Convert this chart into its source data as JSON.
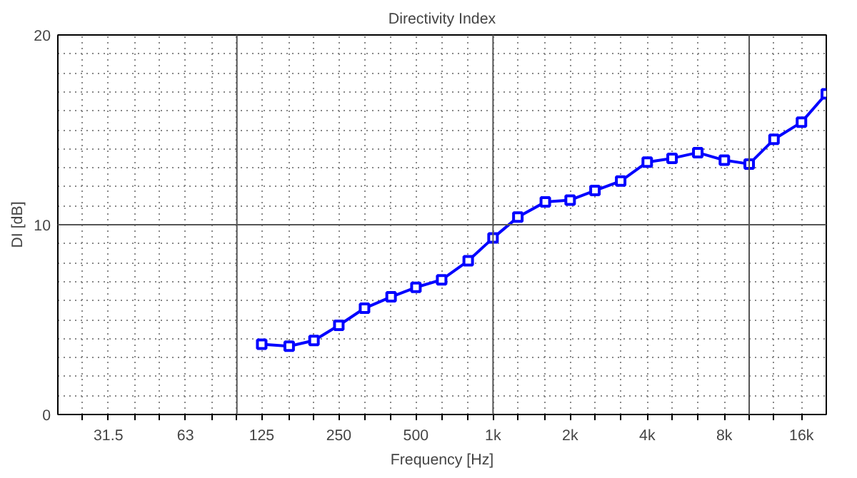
{
  "chart_data": {
    "type": "line",
    "title": "Directivity Index",
    "xlabel": "Frequency [Hz]",
    "ylabel": "DI [dB]",
    "log": "x",
    "x": [
      125,
      160,
      200,
      250,
      315,
      400,
      500,
      630,
      800,
      1000,
      1250,
      1600,
      2000,
      2500,
      3150,
      4000,
      5000,
      6300,
      8000,
      10000,
      12500,
      16000,
      20000
    ],
    "series": [
      {
        "color": "#0000ff",
        "values": [
          3.7,
          3.6,
          3.9,
          4.7,
          5.6,
          6.2,
          6.7,
          7.1,
          8.1,
          9.3,
          10.4,
          11.2,
          11.3,
          11.8,
          12.3,
          13.3,
          13.5,
          13.8,
          13.4,
          13.2,
          14.5,
          15.4,
          16.9
        ]
      }
    ],
    "xlim": [
      20,
      20000
    ],
    "ylim": [
      0,
      20
    ],
    "xticks": [
      {
        "value": 25,
        "label": null
      },
      {
        "value": 31.5,
        "label": "31.5"
      },
      {
        "value": 40,
        "label": null
      },
      {
        "value": 50,
        "label": null
      },
      {
        "value": 63,
        "label": "63"
      },
      {
        "value": 80,
        "label": null
      },
      {
        "value": 100,
        "label": null
      },
      {
        "value": 125,
        "label": "125"
      },
      {
        "value": 160,
        "label": null
      },
      {
        "value": 200,
        "label": null
      },
      {
        "value": 250,
        "label": "250"
      },
      {
        "value": 315,
        "label": null
      },
      {
        "value": 400,
        "label": null
      },
      {
        "value": 500,
        "label": "500"
      },
      {
        "value": 630,
        "label": null
      },
      {
        "value": 800,
        "label": null
      },
      {
        "value": 1000,
        "label": "1k"
      },
      {
        "value": 1250,
        "label": null
      },
      {
        "value": 1600,
        "label": null
      },
      {
        "value": 2000,
        "label": "2k"
      },
      {
        "value": 2500,
        "label": null
      },
      {
        "value": 3150,
        "label": null
      },
      {
        "value": 4000,
        "label": "4k"
      },
      {
        "value": 5000,
        "label": null
      },
      {
        "value": 6300,
        "label": null
      },
      {
        "value": 8000,
        "label": "8k"
      },
      {
        "value": 10000,
        "label": null
      },
      {
        "value": 12500,
        "label": null
      },
      {
        "value": 16000,
        "label": "16k"
      }
    ],
    "yticks": [
      0,
      {
        "value": 1,
        "label": null
      },
      {
        "value": 2,
        "label": null
      },
      {
        "value": 3,
        "label": null
      },
      {
        "value": 4,
        "label": null
      },
      {
        "value": 5,
        "label": null
      },
      {
        "value": 6,
        "label": null
      },
      {
        "value": 7,
        "label": null
      },
      {
        "value": 8,
        "label": null
      },
      {
        "value": 9,
        "label": null
      },
      10,
      {
        "value": 11,
        "label": null
      },
      {
        "value": 12,
        "label": null
      },
      {
        "value": 13,
        "label": null
      },
      {
        "value": 14,
        "label": null
      },
      {
        "value": 15,
        "label": null
      },
      {
        "value": 16,
        "label": null
      },
      {
        "value": 17,
        "label": null
      },
      {
        "value": 18,
        "label": null
      },
      {
        "value": 19,
        "label": null
      },
      20
    ],
    "grid": true,
    "marker": "square",
    "line_style": "solid"
  }
}
